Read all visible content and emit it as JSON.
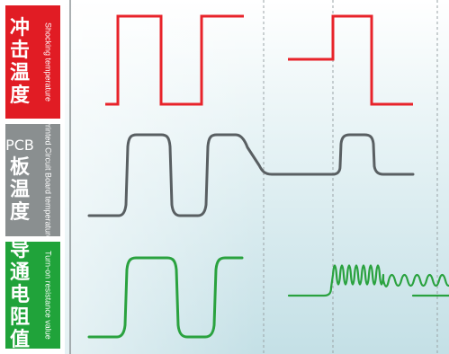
{
  "rows": [
    {
      "zh_chars": [
        "冲",
        "击",
        "温",
        "度"
      ],
      "zh_prefix": "",
      "en": "Shocking temperature",
      "color": "#e11c24"
    },
    {
      "zh_chars": [
        "板",
        "温",
        "度"
      ],
      "zh_prefix": "PCB",
      "en": "Printed Circuit Board temperature",
      "color": "#8a8f90"
    },
    {
      "zh_chars": [
        "导",
        "通",
        "电",
        "阻",
        "值"
      ],
      "zh_prefix": "",
      "en": "Turn-on resistance value",
      "color": "#20a33a"
    }
  ],
  "colors": {
    "plot_background": "#e6f2f5",
    "gridline": "#9aa3a6",
    "shock_trace": "#e8232a",
    "pcb_trace": "#595f62",
    "resistance_trace": "#2aa23f"
  }
}
